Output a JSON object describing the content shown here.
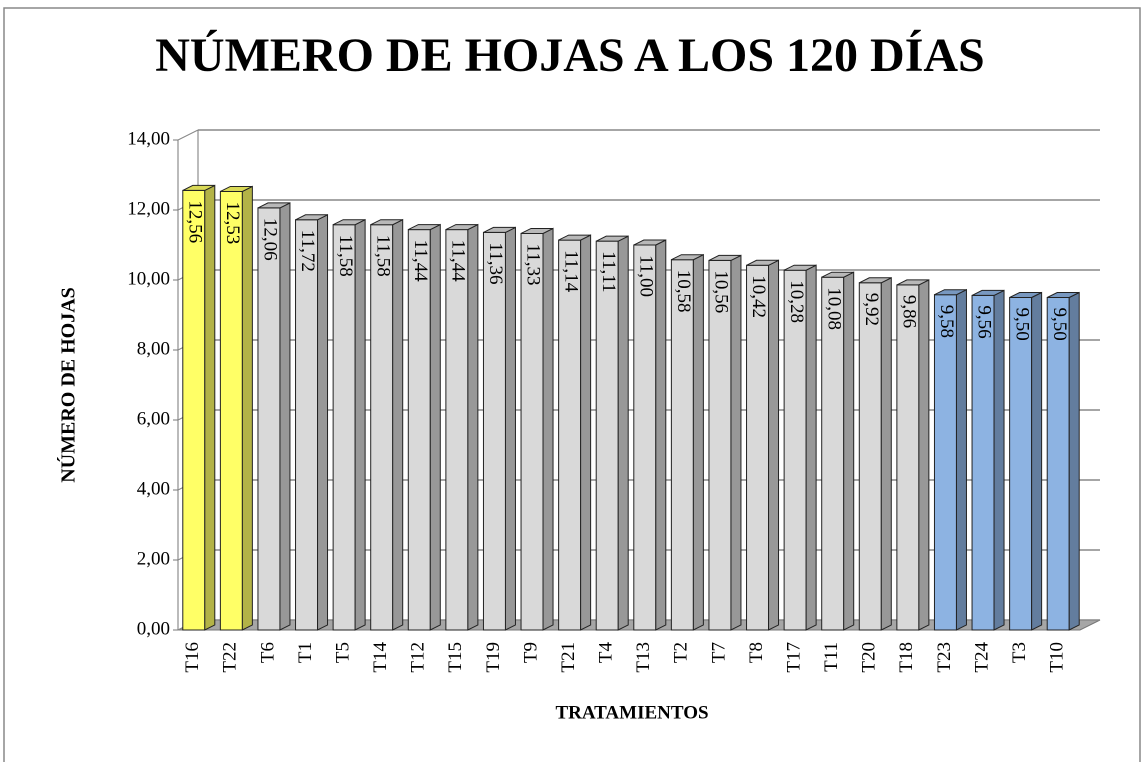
{
  "chart_data": {
    "type": "bar",
    "title": "NÚMERO DE HOJAS A LOS 120 DÍAS",
    "x_label": "TRATAMIENTOS",
    "y_label": "NÚMERO DE HOJAS",
    "categories": [
      "T16",
      "T22",
      "T6",
      "T1",
      "T5",
      "T14",
      "T12",
      "T15",
      "T19",
      "T9",
      "T21",
      "T4",
      "T13",
      "T2",
      "T7",
      "T8",
      "T17",
      "T11",
      "T20",
      "T18",
      "T23",
      "T24",
      "T3",
      "T10"
    ],
    "values": [
      12.56,
      12.53,
      12.06,
      11.72,
      11.58,
      11.58,
      11.44,
      11.44,
      11.36,
      11.33,
      11.14,
      11.11,
      11.0,
      10.58,
      10.56,
      10.42,
      10.28,
      10.08,
      9.92,
      9.86,
      9.58,
      9.56,
      9.5,
      9.5
    ],
    "value_labels": [
      "12,56",
      "12,53",
      "12,06",
      "11,72",
      "11,58",
      "11,58",
      "11,44",
      "11,44",
      "11,36",
      "11,33",
      "11,14",
      "11,11",
      "11,00",
      "10,58",
      "10,56",
      "10,42",
      "10,28",
      "10,08",
      "9,92",
      "9,86",
      "9,58",
      "9,56",
      "9,50",
      "9,50"
    ],
    "colors": [
      "#ffff66",
      "#ffff66",
      "#d9d9d9",
      "#d9d9d9",
      "#d9d9d9",
      "#d9d9d9",
      "#d9d9d9",
      "#d9d9d9",
      "#d9d9d9",
      "#d9d9d9",
      "#d9d9d9",
      "#d9d9d9",
      "#d9d9d9",
      "#d9d9d9",
      "#d9d9d9",
      "#d9d9d9",
      "#d9d9d9",
      "#d9d9d9",
      "#d9d9d9",
      "#d9d9d9",
      "#8db3e2",
      "#8db3e2",
      "#8db3e2",
      "#8db3e2"
    ],
    "ylim": [
      0,
      14
    ],
    "yticks": [
      {
        "value": 0,
        "label": "0,00"
      },
      {
        "value": 2,
        "label": "2,00"
      },
      {
        "value": 4,
        "label": "4,00"
      },
      {
        "value": 6,
        "label": "6,00"
      },
      {
        "value": 8,
        "label": "8,00"
      },
      {
        "value": 10,
        "label": "10,00"
      },
      {
        "value": 12,
        "label": "12,00"
      },
      {
        "value": 14,
        "label": "14,00"
      }
    ],
    "grid": true
  }
}
